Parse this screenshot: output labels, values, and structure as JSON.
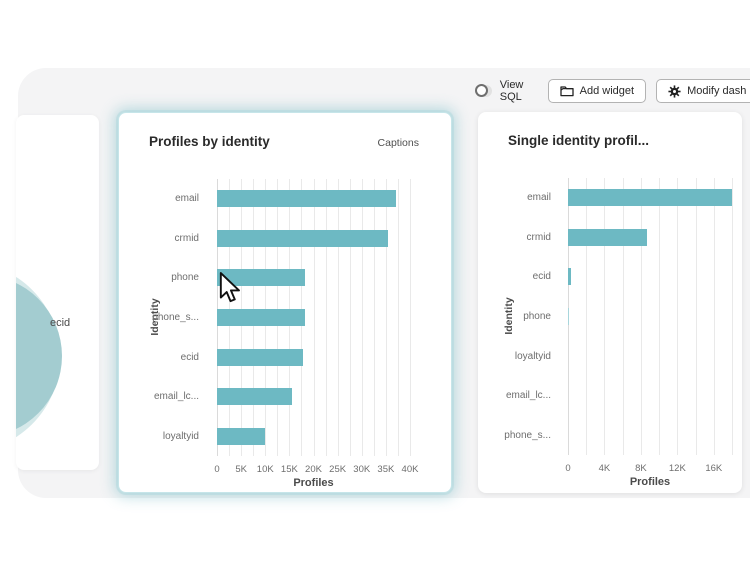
{
  "toolbar": {
    "view_sql_label": "View SQL",
    "view_sql_on": false,
    "add_widget_label": "Add widget",
    "add_widget_icon": "folder-icon",
    "modify_dash_label": "Modify dash",
    "modify_dash_icon": "gear-icon"
  },
  "left_widget": {
    "slice_label": "ecid"
  },
  "colors": {
    "bar": "#6db9c3",
    "bar_faint": "#a8d6dc",
    "panel": "#f4f4f5",
    "selected_glow": "#6eb9c4",
    "donut_outer": "#d6e9ea",
    "donut_inner": "#a3ccd0"
  },
  "chart_data": [
    {
      "type": "bar",
      "orientation": "horizontal",
      "title": "Profiles by identity",
      "action_label": "Captions",
      "categories": [
        "email",
        "crmid",
        "phone",
        "phone_s...",
        "ecid",
        "email_lc...",
        "loyaltyid"
      ],
      "values": [
        37000,
        35500,
        18200,
        18200,
        17800,
        15500,
        10000
      ],
      "xlabel": "Profiles",
      "ylabel": "Identity",
      "xlim": [
        0,
        40000
      ],
      "grid_step": 2500,
      "grid": true,
      "legend": false,
      "xticks": [
        {
          "label": "0",
          "value": 0
        },
        {
          "label": "5K",
          "value": 5000
        },
        {
          "label": "10K",
          "value": 10000
        },
        {
          "label": "15K",
          "value": 15000
        },
        {
          "label": "20K",
          "value": 20000
        },
        {
          "label": "25K",
          "value": 25000
        },
        {
          "label": "30K",
          "value": 30000
        },
        {
          "label": "35K",
          "value": 35000
        },
        {
          "label": "40K",
          "value": 40000
        }
      ]
    },
    {
      "type": "bar",
      "orientation": "horizontal",
      "title": "Single identity profil...",
      "categories": [
        "email",
        "crmid",
        "ecid",
        "phone",
        "loyaltyid",
        "email_lc...",
        "phone_s..."
      ],
      "values": [
        18000,
        8700,
        350,
        150,
        0,
        0,
        0
      ],
      "xlabel": "Profiles",
      "ylabel": "Identity",
      "xlim": [
        0,
        18000
      ],
      "grid_step": 2000,
      "grid": true,
      "legend": false,
      "xticks": [
        {
          "label": "0",
          "value": 0
        },
        {
          "label": "4K",
          "value": 4000
        },
        {
          "label": "8K",
          "value": 8000
        },
        {
          "label": "12K",
          "value": 12000
        },
        {
          "label": "16K",
          "value": 16000
        }
      ]
    }
  ]
}
